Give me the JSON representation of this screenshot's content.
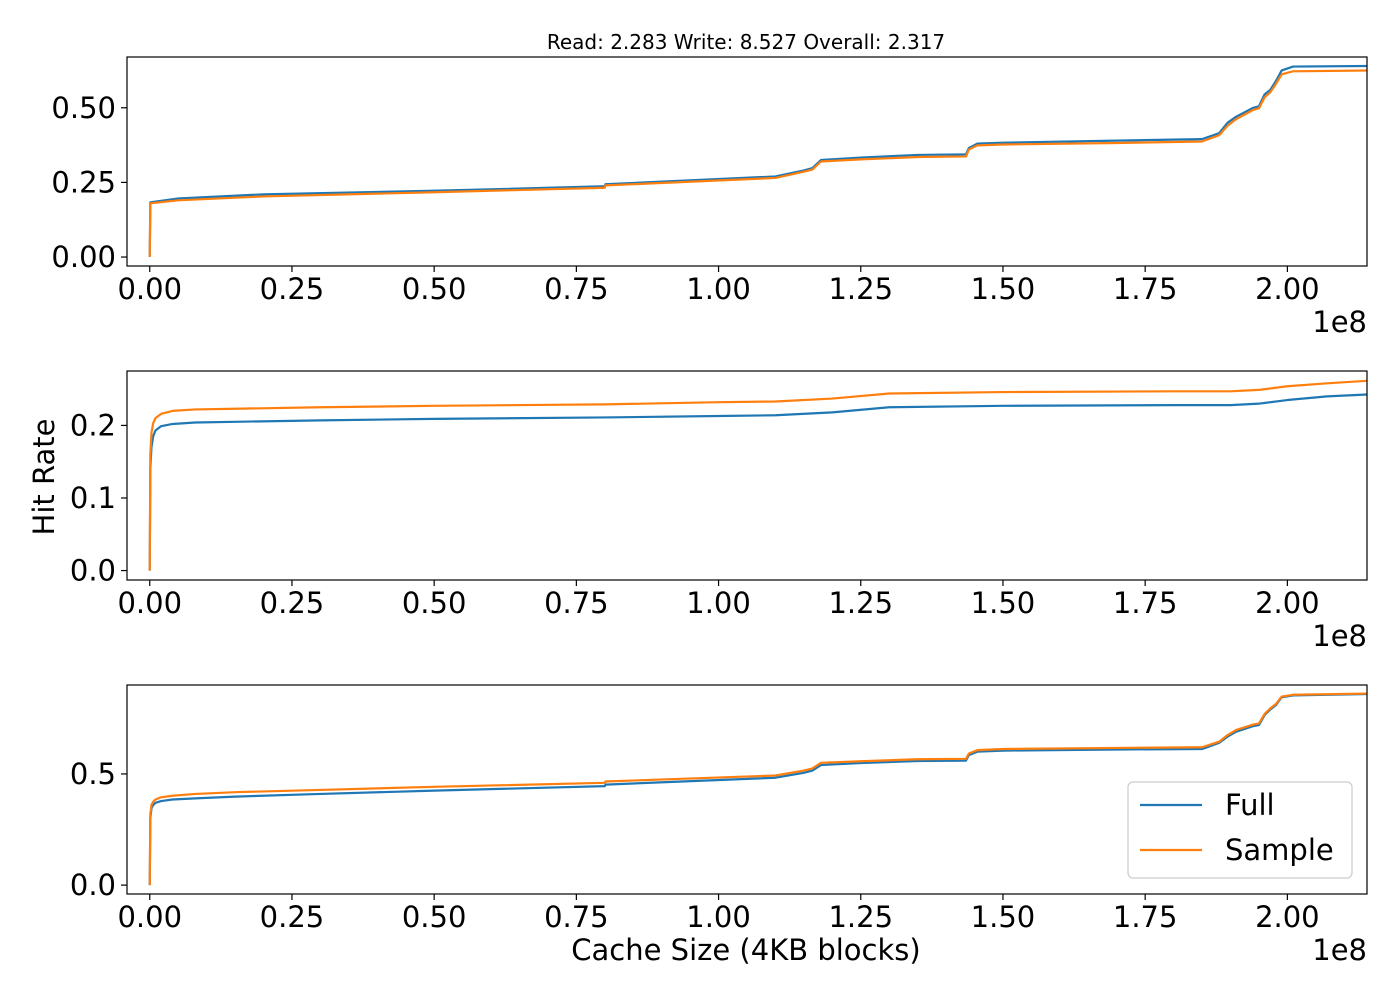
{
  "figure": {
    "title": "Read: 2.283 Write: 8.527 Overall: 2.317",
    "xlabel": "Cache Size (4KB blocks)",
    "ylabel": "Hit Rate"
  },
  "chart_data": [
    {
      "type": "line",
      "title": "Read: 2.283 Write: 8.527 Overall: 2.317",
      "xlabel": "",
      "ylabel": "",
      "x_offset_label": "1e8",
      "xlim": [
        -0.04,
        2.14
      ],
      "ylim": [
        -0.03,
        0.67
      ],
      "x_ticks": [
        0.0,
        0.25,
        0.5,
        0.75,
        1.0,
        1.25,
        1.5,
        1.75,
        2.0
      ],
      "x_tick_labels": [
        "0.00",
        "0.25",
        "0.50",
        "0.75",
        "1.00",
        "1.25",
        "1.50",
        "1.75",
        "2.00"
      ],
      "y_ticks": [
        0.0,
        0.25,
        0.5
      ],
      "y_tick_labels": [
        "0.00",
        "0.25",
        "0.50"
      ],
      "grid": false,
      "series": [
        {
          "name": "Full",
          "color": "#1f77b4",
          "x": [
            0.0,
            0.001,
            0.05,
            0.2,
            0.5,
            0.8,
            0.801,
            1.1,
            1.15,
            1.165,
            1.18,
            1.25,
            1.35,
            1.435,
            1.44,
            1.455,
            1.5,
            1.7,
            1.85,
            1.88,
            1.895,
            1.91,
            1.94,
            1.95,
            1.96,
            1.97,
            1.98,
            1.99,
            2.01,
            2.15
          ],
          "y": [
            0.0,
            0.183,
            0.196,
            0.21,
            0.222,
            0.237,
            0.244,
            0.27,
            0.29,
            0.298,
            0.325,
            0.333,
            0.342,
            0.344,
            0.365,
            0.38,
            0.383,
            0.39,
            0.395,
            0.415,
            0.45,
            0.47,
            0.5,
            0.505,
            0.545,
            0.56,
            0.59,
            0.625,
            0.638,
            0.64
          ]
        },
        {
          "name": "Sample",
          "color": "#ff7f0e",
          "x": [
            0.0,
            0.001,
            0.05,
            0.2,
            0.5,
            0.8,
            0.801,
            1.1,
            1.15,
            1.165,
            1.18,
            1.25,
            1.35,
            1.435,
            1.44,
            1.455,
            1.5,
            1.7,
            1.85,
            1.88,
            1.895,
            1.91,
            1.94,
            1.95,
            1.96,
            1.97,
            1.98,
            1.99,
            2.01,
            2.15
          ],
          "y": [
            0.0,
            0.18,
            0.19,
            0.203,
            0.217,
            0.232,
            0.24,
            0.265,
            0.286,
            0.293,
            0.32,
            0.327,
            0.335,
            0.337,
            0.36,
            0.374,
            0.377,
            0.382,
            0.387,
            0.408,
            0.44,
            0.462,
            0.493,
            0.498,
            0.535,
            0.552,
            0.58,
            0.612,
            0.622,
            0.625
          ]
        }
      ]
    },
    {
      "type": "line",
      "title": "",
      "xlabel": "",
      "ylabel": "Hit Rate",
      "x_offset_label": "1e8",
      "xlim": [
        -0.04,
        2.14
      ],
      "ylim": [
        -0.013,
        0.275
      ],
      "x_ticks": [
        0.0,
        0.25,
        0.5,
        0.75,
        1.0,
        1.25,
        1.5,
        1.75,
        2.0
      ],
      "x_tick_labels": [
        "0.00",
        "0.25",
        "0.50",
        "0.75",
        "1.00",
        "1.25",
        "1.50",
        "1.75",
        "2.00"
      ],
      "y_ticks": [
        0.0,
        0.1,
        0.2
      ],
      "y_tick_labels": [
        "0.0",
        "0.1",
        "0.2"
      ],
      "grid": false,
      "series": [
        {
          "name": "Full",
          "color": "#1f77b4",
          "x": [
            0.0,
            0.001,
            0.003,
            0.006,
            0.01,
            0.02,
            0.04,
            0.08,
            0.15,
            0.3,
            0.5,
            0.8,
            1.0,
            1.1,
            1.2,
            1.3,
            1.5,
            1.8,
            1.9,
            1.95,
            2.0,
            2.07,
            2.15
          ],
          "y": [
            0.0,
            0.14,
            0.17,
            0.185,
            0.193,
            0.199,
            0.202,
            0.204,
            0.205,
            0.207,
            0.209,
            0.211,
            0.213,
            0.214,
            0.218,
            0.225,
            0.227,
            0.228,
            0.228,
            0.23,
            0.235,
            0.24,
            0.243
          ]
        },
        {
          "name": "Sample",
          "color": "#ff7f0e",
          "x": [
            0.0,
            0.001,
            0.003,
            0.006,
            0.01,
            0.02,
            0.04,
            0.08,
            0.15,
            0.3,
            0.5,
            0.8,
            1.0,
            1.1,
            1.2,
            1.3,
            1.5,
            1.8,
            1.9,
            1.95,
            2.0,
            2.07,
            2.15
          ],
          "y": [
            0.0,
            0.16,
            0.19,
            0.203,
            0.21,
            0.216,
            0.22,
            0.222,
            0.223,
            0.225,
            0.227,
            0.229,
            0.232,
            0.233,
            0.237,
            0.244,
            0.246,
            0.247,
            0.247,
            0.249,
            0.254,
            0.258,
            0.262
          ]
        }
      ]
    },
    {
      "type": "line",
      "title": "",
      "xlabel": "Cache Size (4KB blocks)",
      "ylabel": "",
      "x_offset_label": "1e8",
      "xlim": [
        -0.04,
        2.14
      ],
      "ylim": [
        -0.04,
        0.9
      ],
      "x_ticks": [
        0.0,
        0.25,
        0.5,
        0.75,
        1.0,
        1.25,
        1.5,
        1.75,
        2.0
      ],
      "x_tick_labels": [
        "0.00",
        "0.25",
        "0.50",
        "0.75",
        "1.00",
        "1.25",
        "1.50",
        "1.75",
        "2.00"
      ],
      "y_ticks": [
        0.0,
        0.5
      ],
      "y_tick_labels": [
        "0.0",
        "0.5"
      ],
      "grid": false,
      "legend": {
        "position": "lower-right",
        "entries": [
          "Full",
          "Sample"
        ]
      },
      "series": [
        {
          "name": "Full",
          "color": "#1f77b4",
          "x": [
            0.0,
            0.001,
            0.003,
            0.006,
            0.01,
            0.02,
            0.04,
            0.08,
            0.15,
            0.3,
            0.5,
            0.8,
            0.801,
            1.1,
            1.15,
            1.165,
            1.18,
            1.25,
            1.35,
            1.435,
            1.44,
            1.455,
            1.5,
            1.7,
            1.85,
            1.88,
            1.895,
            1.91,
            1.94,
            1.95,
            1.96,
            1.97,
            1.98,
            1.99,
            2.01,
            2.15
          ],
          "y": [
            0.0,
            0.3,
            0.345,
            0.36,
            0.37,
            0.378,
            0.385,
            0.39,
            0.398,
            0.41,
            0.425,
            0.445,
            0.452,
            0.483,
            0.505,
            0.515,
            0.54,
            0.549,
            0.558,
            0.56,
            0.585,
            0.6,
            0.605,
            0.61,
            0.612,
            0.64,
            0.668,
            0.69,
            0.715,
            0.72,
            0.765,
            0.79,
            0.81,
            0.845,
            0.853,
            0.86
          ]
        },
        {
          "name": "Sample",
          "color": "#ff7f0e",
          "x": [
            0.0,
            0.001,
            0.003,
            0.006,
            0.01,
            0.02,
            0.04,
            0.08,
            0.15,
            0.3,
            0.5,
            0.8,
            0.801,
            1.1,
            1.15,
            1.165,
            1.18,
            1.25,
            1.35,
            1.435,
            1.44,
            1.455,
            1.5,
            1.7,
            1.85,
            1.88,
            1.895,
            1.91,
            1.94,
            1.95,
            1.96,
            1.97,
            1.98,
            1.99,
            2.01,
            2.15
          ],
          "y": [
            0.0,
            0.32,
            0.36,
            0.375,
            0.385,
            0.395,
            0.402,
            0.41,
            0.418,
            0.428,
            0.442,
            0.46,
            0.466,
            0.493,
            0.515,
            0.525,
            0.55,
            0.557,
            0.566,
            0.568,
            0.592,
            0.607,
            0.612,
            0.617,
            0.62,
            0.645,
            0.675,
            0.698,
            0.722,
            0.727,
            0.77,
            0.795,
            0.815,
            0.848,
            0.856,
            0.862
          ]
        }
      ]
    }
  ]
}
